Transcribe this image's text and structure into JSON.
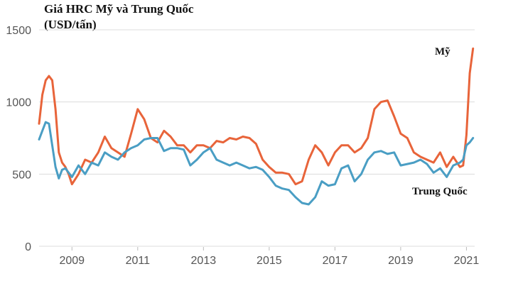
{
  "chart_data": {
    "type": "line",
    "title": "Giá HRC Mỹ và Trung Quốc",
    "subtitle": "(USD/tấn)",
    "xlabel": "",
    "ylabel": "",
    "xlim": [
      2008.0,
      2021.25
    ],
    "ylim": [
      0,
      1500
    ],
    "yticks": [
      0,
      500,
      1000,
      1500
    ],
    "xticks": [
      2009,
      2011,
      2013,
      2015,
      2017,
      2019,
      2021
    ],
    "grid": true,
    "legend": "labels-on-lines",
    "series": [
      {
        "name": "Mỹ",
        "color": "#e8643a",
        "x": [
          2008.0,
          2008.1,
          2008.2,
          2008.3,
          2008.4,
          2008.5,
          2008.6,
          2008.7,
          2008.8,
          2008.9,
          2009.0,
          2009.2,
          2009.4,
          2009.6,
          2009.8,
          2010.0,
          2010.2,
          2010.4,
          2010.6,
          2010.8,
          2011.0,
          2011.2,
          2011.4,
          2011.6,
          2011.8,
          2012.0,
          2012.2,
          2012.4,
          2012.6,
          2012.8,
          2013.0,
          2013.2,
          2013.4,
          2013.6,
          2013.8,
          2014.0,
          2014.2,
          2014.4,
          2014.6,
          2014.8,
          2015.0,
          2015.2,
          2015.4,
          2015.6,
          2015.8,
          2016.0,
          2016.2,
          2016.4,
          2016.6,
          2016.8,
          2017.0,
          2017.2,
          2017.4,
          2017.6,
          2017.8,
          2018.0,
          2018.2,
          2018.4,
          2018.6,
          2018.8,
          2019.0,
          2019.2,
          2019.4,
          2019.6,
          2019.8,
          2020.0,
          2020.2,
          2020.4,
          2020.6,
          2020.8,
          2020.9,
          2021.0,
          2021.1,
          2021.2
        ],
        "values": [
          850,
          1050,
          1150,
          1180,
          1150,
          950,
          650,
          580,
          550,
          500,
          430,
          500,
          600,
          580,
          650,
          760,
          680,
          650,
          620,
          780,
          950,
          880,
          750,
          720,
          800,
          760,
          700,
          700,
          650,
          700,
          700,
          680,
          730,
          720,
          750,
          740,
          760,
          750,
          710,
          600,
          550,
          510,
          510,
          500,
          430,
          450,
          600,
          700,
          650,
          560,
          650,
          700,
          700,
          650,
          680,
          750,
          950,
          1000,
          1010,
          900,
          780,
          750,
          650,
          620,
          600,
          580,
          650,
          550,
          620,
          550,
          560,
          770,
          1200,
          1370
        ]
      },
      {
        "name": "Trung Quốc",
        "color": "#4a9ec4",
        "x": [
          2008.0,
          2008.1,
          2008.2,
          2008.3,
          2008.4,
          2008.5,
          2008.6,
          2008.7,
          2008.8,
          2008.9,
          2009.0,
          2009.2,
          2009.4,
          2009.6,
          2009.8,
          2010.0,
          2010.2,
          2010.4,
          2010.6,
          2010.8,
          2011.0,
          2011.2,
          2011.4,
          2011.6,
          2011.8,
          2012.0,
          2012.2,
          2012.4,
          2012.6,
          2012.8,
          2013.0,
          2013.2,
          2013.4,
          2013.6,
          2013.8,
          2014.0,
          2014.2,
          2014.4,
          2014.6,
          2014.8,
          2015.0,
          2015.2,
          2015.4,
          2015.6,
          2015.8,
          2016.0,
          2016.2,
          2016.4,
          2016.6,
          2016.8,
          2017.0,
          2017.2,
          2017.4,
          2017.6,
          2017.8,
          2018.0,
          2018.2,
          2018.4,
          2018.6,
          2018.8,
          2019.0,
          2019.2,
          2019.4,
          2019.6,
          2019.8,
          2020.0,
          2020.2,
          2020.4,
          2020.6,
          2020.8,
          2020.9,
          2021.0,
          2021.1,
          2021.2
        ],
        "values": [
          740,
          800,
          860,
          850,
          700,
          550,
          470,
          530,
          540,
          510,
          480,
          560,
          500,
          580,
          560,
          650,
          620,
          600,
          650,
          680,
          700,
          740,
          750,
          750,
          660,
          680,
          680,
          670,
          560,
          600,
          650,
          680,
          600,
          580,
          560,
          580,
          560,
          540,
          550,
          530,
          480,
          420,
          400,
          390,
          340,
          300,
          290,
          340,
          450,
          420,
          430,
          540,
          560,
          450,
          500,
          600,
          650,
          660,
          640,
          650,
          560,
          570,
          580,
          600,
          570,
          510,
          540,
          480,
          560,
          580,
          600,
          700,
          720,
          750
        ]
      }
    ],
    "annotations": [
      "Mỹ",
      "Trung Quốc"
    ]
  }
}
